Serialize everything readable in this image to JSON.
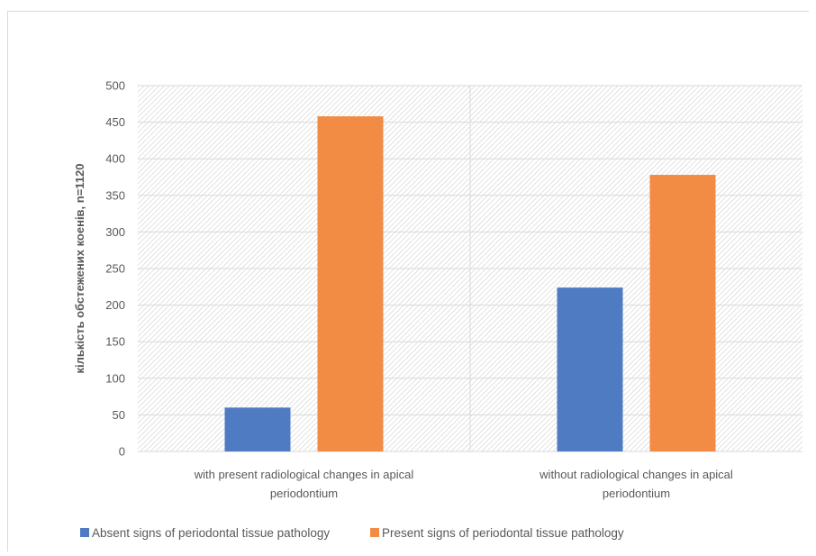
{
  "chart_data": {
    "type": "bar",
    "categories": [
      "with present radiological changes in apical periodontium",
      "without radiological changes in apical periodontium"
    ],
    "category_lines": [
      [
        "with present radiological changes in apical",
        "periodontium"
      ],
      [
        "without radiological changes in apical",
        "periodontium"
      ]
    ],
    "series": [
      {
        "name": "Absent signs of periodontal tissue pathology",
        "values": [
          60,
          224
        ],
        "color": "#4f7bc3"
      },
      {
        "name": "Present signs of periodontal tissue pathology",
        "values": [
          458,
          378
        ],
        "color": "#f28b43"
      }
    ],
    "ylabel": "кількість обстежених коенів, n=1120",
    "ylim": [
      0,
      500
    ],
    "yticks": [
      0,
      50,
      100,
      150,
      200,
      250,
      300,
      350,
      400,
      450,
      500
    ],
    "grid": true,
    "plot_background": "diagonal hatch",
    "legend_position": "bottom"
  }
}
